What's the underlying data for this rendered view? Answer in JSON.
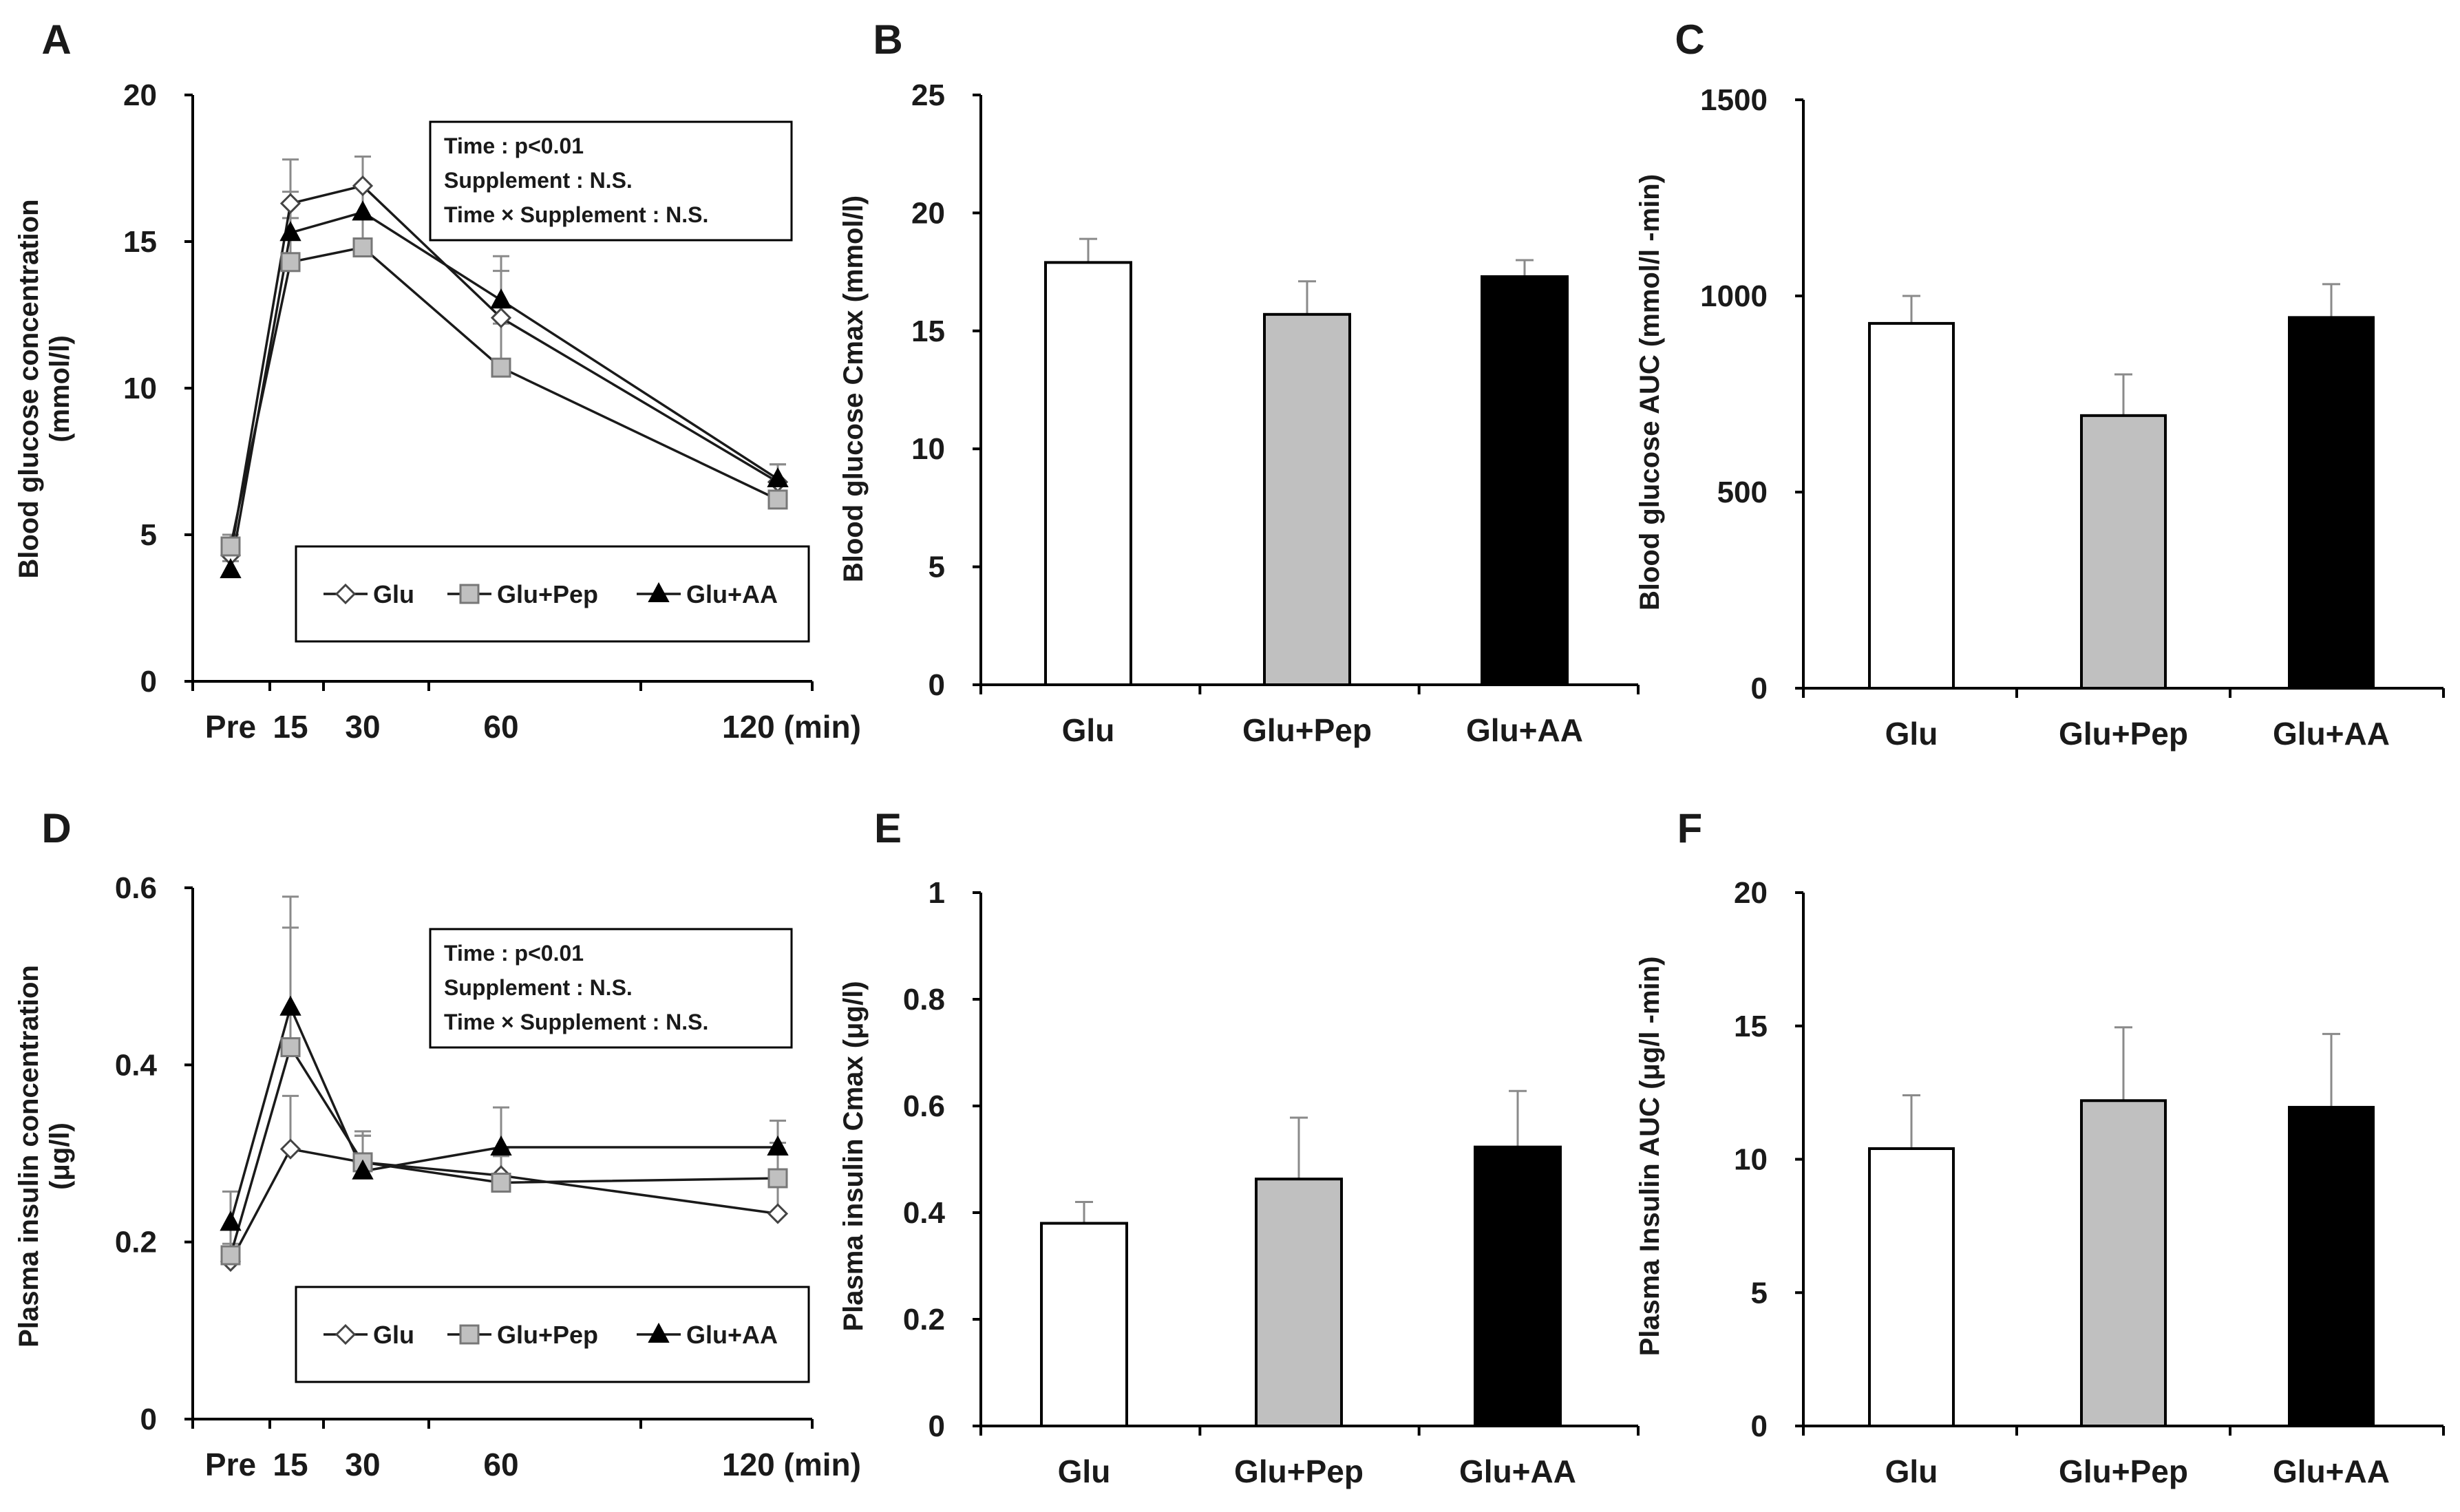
{
  "colors": {
    "Glu": "#ffffff",
    "Glu+Pep": "#c0c0c0",
    "Glu+AA": "#000000",
    "error_bar": "#8a8a8a"
  },
  "chart_data": [
    {
      "panel": "A",
      "type": "line",
      "ylabel_lines": [
        "Blood glucose concentration",
        "(mmol/l)"
      ],
      "x_ticks": [
        {
          "label": "Pre",
          "x": 0
        },
        {
          "label": "15",
          "x": 15
        },
        {
          "label": "30",
          "x": 30
        },
        {
          "label": "60",
          "x": 60
        },
        {
          "label": "120 (min)",
          "x": 120
        }
      ],
      "y_ticks": [
        "0",
        "5",
        "10",
        "15",
        "20"
      ],
      "ylim": [
        0,
        20
      ],
      "stats_lines": [
        "Time : p<0.01",
        "Supplement : N.S.",
        "Time × Supplement : N.S."
      ],
      "series": [
        {
          "name": "Glu",
          "marker": "diamond",
          "x": [
            0,
            15,
            30,
            60,
            120
          ],
          "values": [
            4.3,
            16.3,
            16.9,
            12.4,
            6.8
          ],
          "err": [
            0.5,
            1.5,
            1.0,
            1.6,
            0.6
          ]
        },
        {
          "name": "Glu+Pep",
          "marker": "square",
          "x": [
            0,
            15,
            30,
            60,
            120
          ],
          "values": [
            4.6,
            14.3,
            14.8,
            10.7,
            6.2
          ],
          "err": [
            0.4,
            1.5,
            1.0,
            1.5,
            0.5
          ]
        },
        {
          "name": "Glu+AA",
          "marker": "triangle",
          "x": [
            0,
            15,
            30,
            60,
            120
          ],
          "values": [
            3.8,
            15.3,
            16.0,
            13.0,
            6.9
          ],
          "err": [
            0.3,
            1.4,
            0.9,
            1.5,
            0.5
          ]
        }
      ]
    },
    {
      "panel": "B",
      "type": "bar",
      "ylabel": "Blood glucose Cmax (mmol/l)",
      "categories": [
        "Glu",
        "Glu+Pep",
        "Glu+AA"
      ],
      "values": [
        17.9,
        15.7,
        17.3
      ],
      "err": [
        1.0,
        1.4,
        0.7
      ],
      "y_ticks": [
        "0",
        "5",
        "10",
        "15",
        "20",
        "25"
      ],
      "ylim": [
        0,
        25
      ]
    },
    {
      "panel": "C",
      "type": "bar",
      "ylabel": "Blood glucose AUC (mmol/l -min)",
      "categories": [
        "Glu",
        "Glu+Pep",
        "Glu+AA"
      ],
      "values": [
        930,
        695,
        945
      ],
      "err": [
        70,
        105,
        85
      ],
      "y_ticks": [
        "0",
        "500",
        "1000",
        "1500"
      ],
      "ylim": [
        0,
        1500
      ]
    },
    {
      "panel": "D",
      "type": "line",
      "ylabel_lines": [
        "Plasma insulin concentration",
        "(μg/l)"
      ],
      "x_ticks": [
        {
          "label": "Pre",
          "x": 0
        },
        {
          "label": "15",
          "x": 15
        },
        {
          "label": "30",
          "x": 30
        },
        {
          "label": "60",
          "x": 60
        },
        {
          "label": "120 (min)",
          "x": 120
        }
      ],
      "y_ticks": [
        "0",
        "0.2",
        "0.4",
        "0.6"
      ],
      "ylim": [
        0,
        0.6
      ],
      "stats_lines": [
        "Time : p<0.01",
        "Supplement : N.S.",
        "Time × Supplement : N.S."
      ],
      "series": [
        {
          "name": "Glu",
          "marker": "diamond",
          "x": [
            0,
            15,
            30,
            60,
            120
          ],
          "values": [
            0.178,
            0.305,
            0.29,
            0.275,
            0.232
          ],
          "err": [
            0.02,
            0.06,
            0.03,
            0.03,
            0.03
          ]
        },
        {
          "name": "Glu+Pep",
          "marker": "square",
          "x": [
            0,
            15,
            30,
            60,
            120
          ],
          "values": [
            0.185,
            0.42,
            0.29,
            0.267,
            0.272
          ],
          "err": [
            0.03,
            0.17,
            0.035,
            0.03,
            0.04
          ]
        },
        {
          "name": "Glu+AA",
          "marker": "triangle",
          "x": [
            0,
            15,
            30,
            60,
            120
          ],
          "values": [
            0.222,
            0.465,
            0.28,
            0.307,
            0.307
          ],
          "err": [
            0.035,
            0.09,
            0.04,
            0.045,
            0.03
          ]
        }
      ]
    },
    {
      "panel": "E",
      "type": "bar",
      "ylabel": "Plasma insulin Cmax (μg/l)",
      "categories": [
        "Glu",
        "Glu+Pep",
        "Glu+AA"
      ],
      "values": [
        0.38,
        0.463,
        0.523
      ],
      "err": [
        0.04,
        0.115,
        0.105
      ],
      "y_ticks": [
        "0",
        "0.2",
        "0.4",
        "0.6",
        "0.8",
        "1"
      ],
      "ylim": [
        0,
        1
      ]
    },
    {
      "panel": "F",
      "type": "bar",
      "ylabel": "Plasma Insulin AUC (μg/l -min)",
      "categories": [
        "Glu",
        "Glu+Pep",
        "Glu+AA"
      ],
      "values": [
        10.4,
        12.2,
        11.95
      ],
      "err": [
        2.0,
        2.75,
        2.75
      ],
      "y_ticks": [
        "0",
        "5",
        "10",
        "15",
        "20"
      ],
      "ylim": [
        0,
        20
      ]
    }
  ]
}
